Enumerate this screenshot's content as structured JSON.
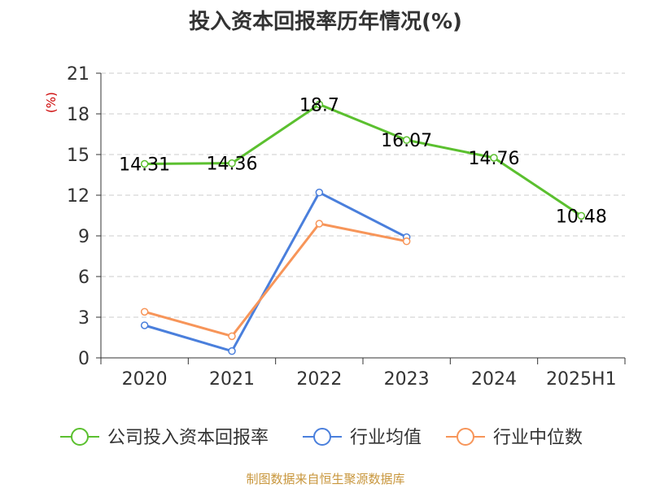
{
  "chart_data": {
    "type": "line",
    "title": "投入资本回报率历年情况(%)",
    "ylabel": "(%)",
    "xlabel": "",
    "categories": [
      "2020",
      "2021",
      "2022",
      "2023",
      "2024",
      "2025H1"
    ],
    "ylim": [
      0,
      21
    ],
    "yticks": [
      "0",
      "3",
      "6",
      "9",
      "12",
      "15",
      "18",
      "21"
    ],
    "grid": true,
    "legend_position": "bottom",
    "series": [
      {
        "name": "公司投入资本回报率",
        "color": "#5bc02f",
        "values": [
          14.31,
          14.36,
          18.7,
          16.07,
          14.76,
          10.48
        ],
        "labels": [
          "14.31",
          "14.36",
          "18.7",
          "16.07",
          "14.76",
          "10.48"
        ],
        "show_labels": true
      },
      {
        "name": "行业均值",
        "color": "#4a7fdc",
        "values": [
          2.4,
          0.5,
          12.2,
          8.9,
          null,
          null
        ],
        "show_labels": false
      },
      {
        "name": "行业中位数",
        "color": "#f79559",
        "values": [
          3.4,
          1.6,
          9.9,
          8.6,
          null,
          null
        ],
        "show_labels": false
      }
    ]
  },
  "source": "制图数据来自恒生聚源数据库"
}
